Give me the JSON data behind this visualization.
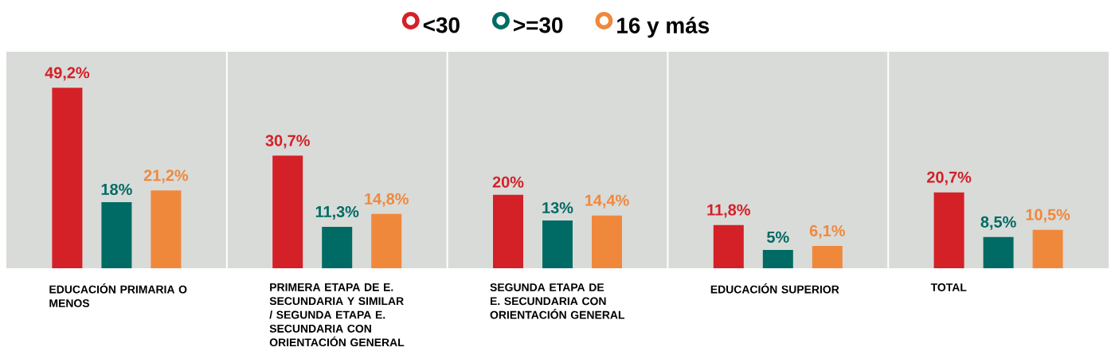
{
  "chart_data": {
    "type": "bar",
    "legend": "top",
    "categories": [
      "EDUCACIÓN PRIMARIA O MENOS",
      "PRIMERA ETAPA DE E. SECUNDARIA Y SIMILAR / SEGUNDA ETAPA E. SECUNDARIA CON ORIENTACIÓN GENERAL",
      "SEGUNDA ETAPA DE E. SECUNDARIA CON ORIENTACIÓN GENERAL",
      "EDUCACIÓN SUPERIOR",
      "TOTAL"
    ],
    "series": [
      {
        "name": "<30",
        "color": "#d42027",
        "values": [
          49.2,
          30.7,
          20,
          11.8,
          20.7
        ],
        "value_labels": [
          "49,2%",
          "30,7%",
          "20%",
          "11,8%",
          "20,7%"
        ]
      },
      {
        "name": ">=30",
        "color": "#006b64",
        "values": [
          18,
          11.3,
          13,
          5,
          8.5
        ],
        "value_labels": [
          "18%",
          "11,3%",
          "13%",
          "5%",
          "8,5%"
        ]
      },
      {
        "name": "16 y más",
        "color": "#f0883c",
        "values": [
          21.2,
          14.8,
          14.4,
          6.1,
          10.5
        ],
        "value_labels": [
          "21,2%",
          "14,8%",
          "14,4%",
          "6,1%",
          "10,5%"
        ]
      }
    ]
  }
}
